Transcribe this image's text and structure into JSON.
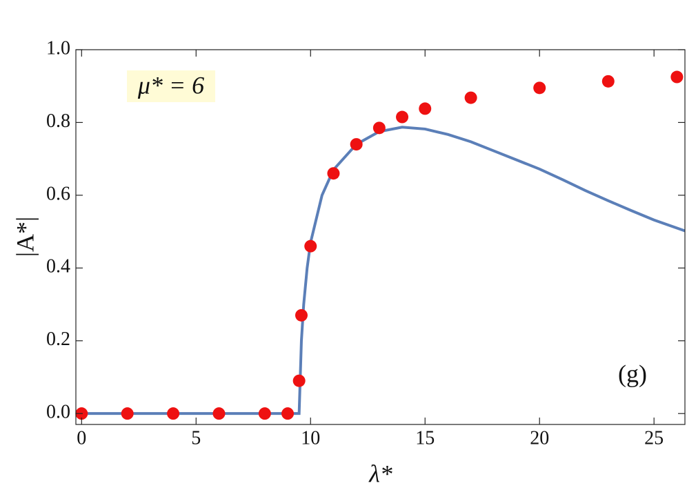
{
  "chart_data": {
    "type": "scatter",
    "xlabel": "λ*",
    "ylabel": "|A*|",
    "annotations": [
      "μ* = 6",
      "(g)"
    ],
    "annotation_background": "#fffbd6",
    "xlim": [
      -0.25,
      26.35
    ],
    "ylim": [
      -0.03,
      1.0
    ],
    "xticks": [
      0,
      5,
      10,
      15,
      20,
      25
    ],
    "yticks": [
      {
        "value": 0,
        "label": "0.0"
      },
      0.2,
      0.4,
      0.6,
      0.8,
      {
        "value": 1,
        "label": "1.0"
      }
    ],
    "series": [
      {
        "type": "line",
        "color": "#5b7fb8",
        "x": [
          -0.25,
          9.5,
          9.55,
          9.6,
          9.7,
          9.85,
          10,
          10.5,
          11,
          12,
          13,
          14,
          15,
          16,
          17,
          18,
          19,
          20,
          21,
          22,
          23,
          24,
          25,
          26.35
        ],
        "y": [
          0,
          0,
          0.1,
          0.2,
          0.3,
          0.4,
          0.47,
          0.6,
          0.67,
          0.74,
          0.775,
          0.787,
          0.782,
          0.767,
          0.747,
          0.722,
          0.697,
          0.672,
          0.643,
          0.613,
          0.585,
          0.558,
          0.532,
          0.502
        ]
      },
      {
        "type": "scatter",
        "color": "#ee1111",
        "x": [
          0,
          2,
          4,
          6,
          8,
          9,
          9.5,
          9.6,
          10,
          11,
          12,
          13,
          14,
          15,
          17,
          20,
          23,
          26
        ],
        "y": [
          0,
          0,
          0,
          0,
          0,
          0,
          0.09,
          0.27,
          0.46,
          0.66,
          0.74,
          0.785,
          0.815,
          0.838,
          0.868,
          0.895,
          0.913,
          0.925
        ]
      }
    ]
  }
}
